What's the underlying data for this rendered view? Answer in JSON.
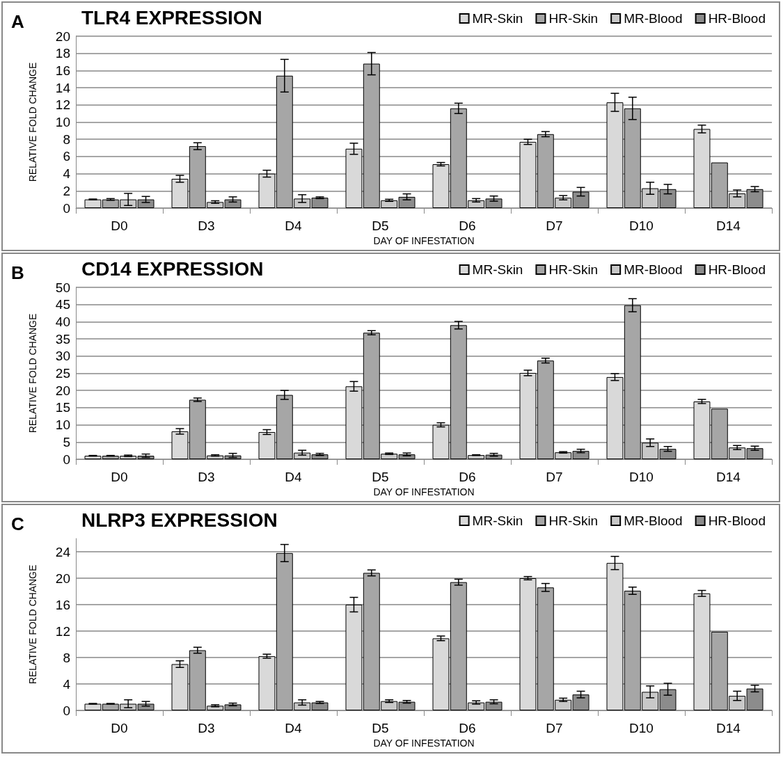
{
  "chart_data": [
    {
      "type": "bar",
      "title": "TLR4 EXPRESSION",
      "annotations": [
        "A"
      ],
      "xlabel": "DAY OF INFESTATION",
      "ylabel": "RELATIVE FOLD CHANGE",
      "categories": [
        "D0",
        "D3",
        "D4",
        "D5",
        "D6",
        "D7",
        "D10",
        "D14"
      ],
      "ylim": [
        0,
        20
      ],
      "yticks": [
        0,
        2,
        4,
        6,
        8,
        10,
        12,
        14,
        16,
        18,
        20
      ],
      "grid": "y",
      "legend": "top right",
      "series": [
        {
          "name": "MR-Skin",
          "color": "#d9d9d9",
          "values": [
            1,
            3.4,
            4.0,
            6.9,
            5.1,
            7.7,
            12.3,
            9.2
          ],
          "errors": [
            0.05,
            0.4,
            0.4,
            0.65,
            0.2,
            0.3,
            1.05,
            0.45
          ]
        },
        {
          "name": "HR-Skin",
          "color": "#a6a6a6",
          "values": [
            1,
            7.2,
            15.4,
            16.8,
            11.6,
            8.6,
            11.6,
            5.3
          ],
          "errors": [
            0.1,
            0.4,
            1.9,
            1.3,
            0.6,
            0.3,
            1.3,
            null
          ]
        },
        {
          "name": "MR-Blood",
          "color": "#c8c8c8",
          "values": [
            1,
            0.7,
            1.1,
            0.9,
            0.9,
            1.2,
            2.3,
            1.7
          ],
          "errors": [
            0.7,
            0.15,
            0.45,
            0.12,
            0.2,
            0.25,
            0.7,
            0.4
          ]
        },
        {
          "name": "HR-Blood",
          "color": "#8c8c8c",
          "values": [
            1,
            1,
            1.2,
            1.3,
            1.1,
            1.9,
            2.2,
            2.2
          ],
          "errors": [
            0.35,
            0.3,
            0.1,
            0.35,
            0.3,
            0.5,
            0.55,
            0.3
          ]
        }
      ]
    },
    {
      "type": "bar",
      "title": "CD14 EXPRESSION",
      "annotations": [
        "B"
      ],
      "xlabel": "DAY OF INFESTATION",
      "ylabel": "RELATIVE FOLD CHANGE",
      "categories": [
        "D0",
        "D3",
        "D4",
        "D5",
        "D6",
        "D7",
        "D10",
        "D14"
      ],
      "ylim": [
        0,
        50
      ],
      "yticks": [
        0,
        5,
        10,
        15,
        20,
        25,
        30,
        35,
        40,
        45,
        50
      ],
      "grid": "y",
      "legend": "top right",
      "series": [
        {
          "name": "MR-Skin",
          "color": "#d9d9d9",
          "values": [
            1,
            8.1,
            7.9,
            21.2,
            10,
            25.1,
            23.9,
            16.8
          ],
          "errors": [
            0.1,
            0.8,
            0.7,
            1.4,
            0.6,
            0.8,
            1,
            0.6
          ]
        },
        {
          "name": "HR-Skin",
          "color": "#a6a6a6",
          "values": [
            1,
            17.3,
            18.7,
            36.8,
            39,
            28.7,
            44.8,
            14.7
          ],
          "errors": [
            0.1,
            0.5,
            1.3,
            0.6,
            1.1,
            0.7,
            1.9,
            null
          ]
        },
        {
          "name": "MR-Blood",
          "color": "#c8c8c8",
          "values": [
            1,
            1.1,
            1.9,
            1.6,
            1.2,
            2,
            4.8,
            3.4
          ],
          "errors": [
            0.2,
            0.2,
            0.7,
            0.2,
            0.1,
            0.2,
            1.1,
            0.6
          ]
        },
        {
          "name": "HR-Blood",
          "color": "#8c8c8c",
          "values": [
            1,
            1.1,
            1.4,
            1.4,
            1.3,
            2.4,
            3,
            3.2
          ],
          "errors": [
            0.5,
            0.6,
            0.3,
            0.4,
            0.4,
            0.5,
            0.7,
            0.6
          ]
        }
      ]
    },
    {
      "type": "bar",
      "title": "NLRP3 EXPRESSION",
      "annotations": [
        "C"
      ],
      "xlabel": "DAY OF INFESTATION",
      "ylabel": "RELATIVE FOLD CHANGE",
      "categories": [
        "D0",
        "D3",
        "D4",
        "D5",
        "D6",
        "D7",
        "D10",
        "D14"
      ],
      "ylim": [
        0,
        26
      ],
      "yticks": [
        0,
        4,
        8,
        12,
        16,
        20,
        24
      ],
      "grid": "y",
      "legend": "top right",
      "series": [
        {
          "name": "MR-Skin",
          "color": "#d9d9d9",
          "values": [
            1,
            7,
            8.2,
            16,
            10.9,
            20,
            22.3,
            17.7
          ],
          "errors": [
            0.05,
            0.5,
            0.3,
            1.1,
            0.35,
            0.25,
            1,
            0.45
          ]
        },
        {
          "name": "HR-Skin",
          "color": "#a6a6a6",
          "values": [
            1,
            9.1,
            23.8,
            20.8,
            19.4,
            18.6,
            18.1,
            11.9
          ],
          "errors": [
            0.05,
            0.45,
            1.3,
            0.45,
            0.45,
            0.6,
            0.55,
            null
          ]
        },
        {
          "name": "MR-Blood",
          "color": "#c8c8c8",
          "values": [
            1,
            0.7,
            1.2,
            1.4,
            1.2,
            1.6,
            2.8,
            2.2
          ],
          "errors": [
            0.6,
            0.15,
            0.4,
            0.2,
            0.25,
            0.25,
            0.9,
            0.7
          ]
        },
        {
          "name": "HR-Blood",
          "color": "#8c8c8c",
          "values": [
            1,
            0.9,
            1.2,
            1.3,
            1.3,
            2.4,
            3.2,
            3.3
          ],
          "errors": [
            0.35,
            0.2,
            0.15,
            0.2,
            0.3,
            0.5,
            0.9,
            0.5
          ]
        }
      ]
    }
  ]
}
